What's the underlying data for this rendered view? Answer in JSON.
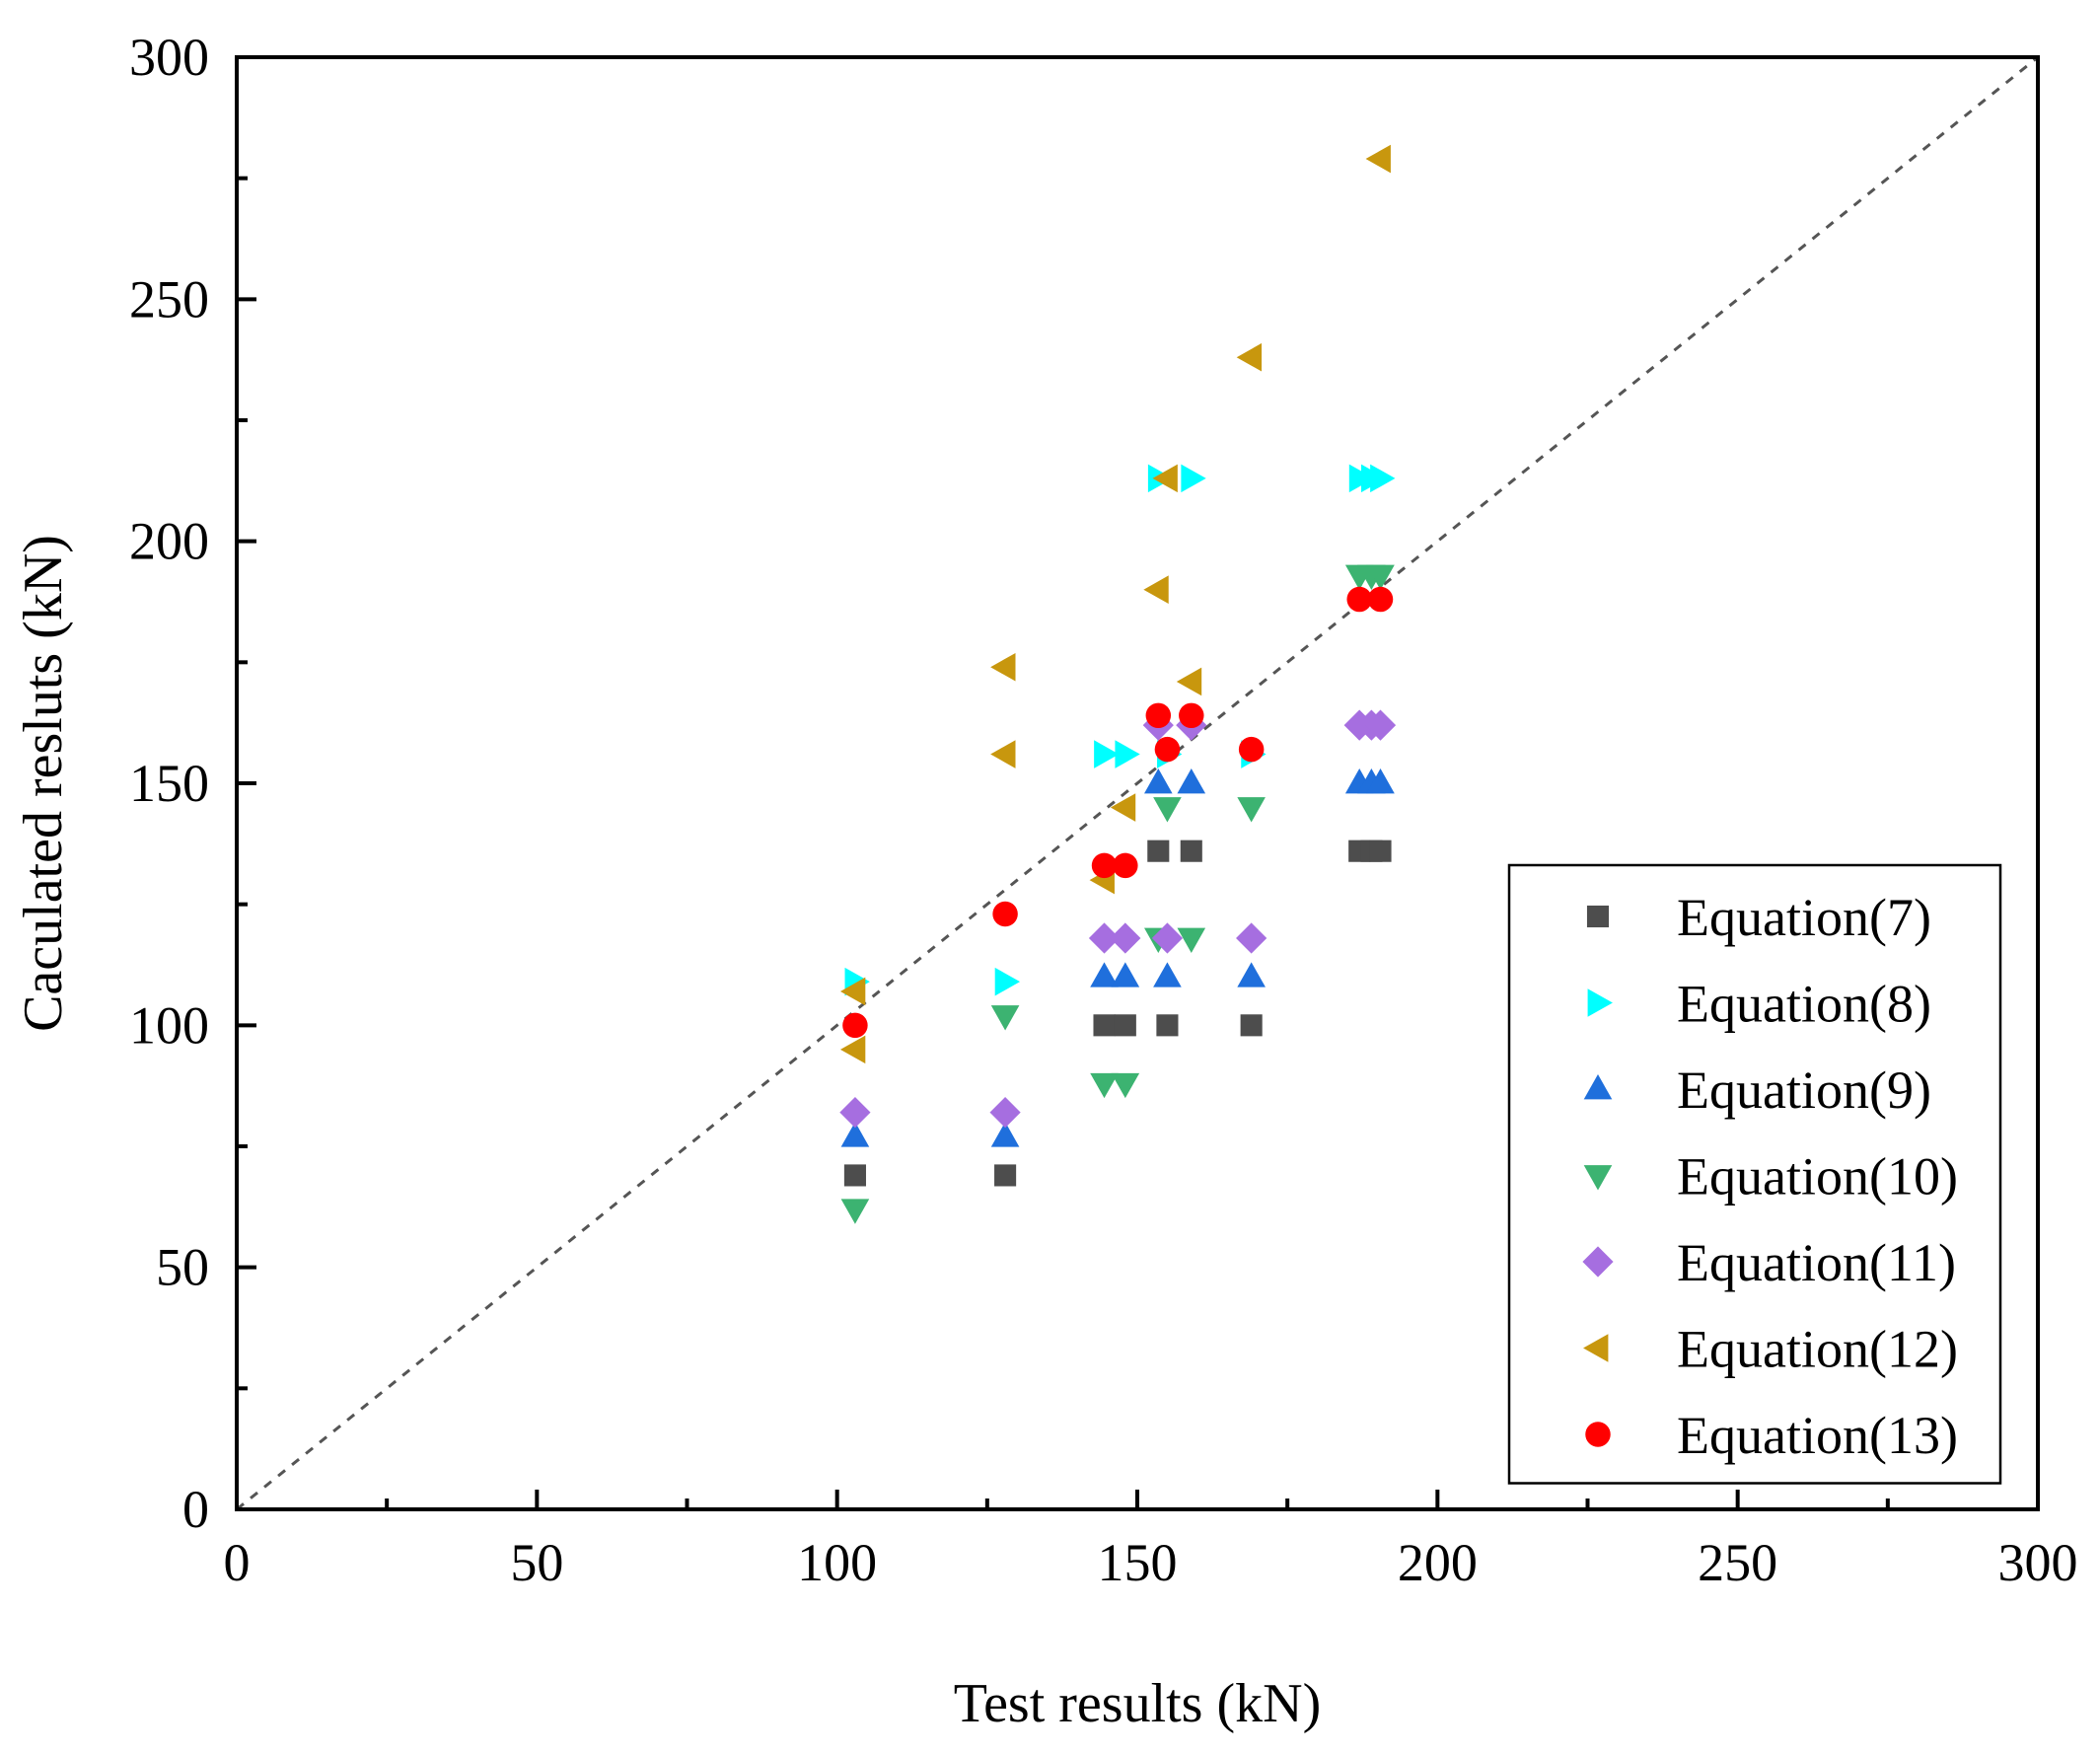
{
  "chart_data": {
    "type": "scatter",
    "title": "",
    "xlabel": "Test results (kN)",
    "ylabel": "Caculated resluts (kN)",
    "xlim": [
      0,
      300
    ],
    "ylim": [
      0,
      300
    ],
    "xticks": [
      "0",
      "50",
      "100",
      "150",
      "200",
      "250",
      "300"
    ],
    "yticks": [
      "0",
      "50",
      "100",
      "150",
      "200",
      "250",
      "300"
    ],
    "reference_line": "y = x (dashed)",
    "legend_position": "bottom-right",
    "series": [
      {
        "name": "Equation(7)",
        "marker": "square",
        "color": "#4d4d4d",
        "points": [
          [
            103,
            69
          ],
          [
            128,
            69
          ],
          [
            144.5,
            100
          ],
          [
            148,
            100
          ],
          [
            153.5,
            136
          ],
          [
            155,
            100
          ],
          [
            159,
            136
          ],
          [
            169,
            100
          ],
          [
            187,
            136
          ],
          [
            189,
            136
          ],
          [
            190.5,
            136
          ]
        ]
      },
      {
        "name": "Equation(8)",
        "marker": "triangle-right",
        "color": "#00ffff",
        "points": [
          [
            103,
            109
          ],
          [
            128,
            109
          ],
          [
            144.5,
            156
          ],
          [
            148,
            156
          ],
          [
            153.5,
            213
          ],
          [
            155,
            156
          ],
          [
            159,
            213
          ],
          [
            169,
            156
          ],
          [
            187,
            213
          ],
          [
            189,
            213
          ],
          [
            190.5,
            213
          ]
        ]
      },
      {
        "name": "Equation(9)",
        "marker": "triangle-up",
        "color": "#1f6fdc",
        "points": [
          [
            103,
            77
          ],
          [
            128,
            77
          ],
          [
            144.5,
            110
          ],
          [
            148,
            110
          ],
          [
            153.5,
            150
          ],
          [
            155,
            110
          ],
          [
            159,
            150
          ],
          [
            169,
            110
          ],
          [
            187,
            150
          ],
          [
            189,
            150
          ],
          [
            190.5,
            150
          ]
        ]
      },
      {
        "name": "Equation(10)",
        "marker": "triangle-down",
        "color": "#3cb371",
        "points": [
          [
            103,
            62
          ],
          [
            128,
            102
          ],
          [
            144.5,
            88
          ],
          [
            148,
            88
          ],
          [
            153.5,
            118
          ],
          [
            155,
            145
          ],
          [
            159,
            118
          ],
          [
            169,
            145
          ],
          [
            187,
            193
          ],
          [
            189,
            193
          ],
          [
            190.5,
            193
          ]
        ]
      },
      {
        "name": "Equation(11)",
        "marker": "diamond",
        "color": "#a66ee0",
        "points": [
          [
            103,
            82
          ],
          [
            128,
            82
          ],
          [
            144.5,
            118
          ],
          [
            148,
            118
          ],
          [
            153.5,
            162
          ],
          [
            155,
            118
          ],
          [
            159,
            162
          ],
          [
            169,
            118
          ],
          [
            187,
            162
          ],
          [
            189,
            162
          ],
          [
            190.5,
            162
          ]
        ]
      },
      {
        "name": "Equation(12)",
        "marker": "triangle-left",
        "color": "#c8970e",
        "points": [
          [
            103,
            95
          ],
          [
            103,
            107
          ],
          [
            128,
            156
          ],
          [
            128,
            174
          ],
          [
            144.5,
            130
          ],
          [
            148,
            145
          ],
          [
            153.5,
            190
          ],
          [
            155,
            213
          ],
          [
            159,
            171
          ],
          [
            169,
            238
          ],
          [
            190.5,
            279
          ]
        ]
      },
      {
        "name": "Equation(13)",
        "marker": "circle",
        "color": "#ff0000",
        "points": [
          [
            103,
            100
          ],
          [
            128,
            123
          ],
          [
            144.5,
            133
          ],
          [
            148,
            133
          ],
          [
            153.5,
            164
          ],
          [
            155,
            157
          ],
          [
            159,
            164
          ],
          [
            169,
            157
          ],
          [
            187,
            188
          ],
          [
            190.5,
            188
          ]
        ]
      }
    ]
  }
}
